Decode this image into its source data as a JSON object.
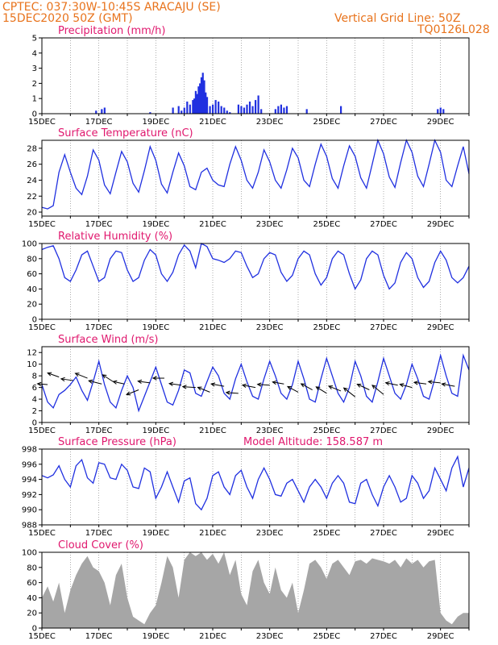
{
  "header": {
    "line1": "CPTEC:   037:30W-10:45S   ARACAJU (SE)",
    "line2": "15DEC2020  50Z (GMT)",
    "right1": "Vertical Grid Line: 50Z",
    "right2": "TQ0126L028"
  },
  "colors": {
    "header": "#e8731c",
    "title": "#e0186e",
    "line": "#2030e0",
    "cloud": "#a6a6a6",
    "arrow": "#000000"
  },
  "x_ticks": [
    "15DEC",
    "17DEC",
    "19DEC",
    "21DEC",
    "23DEC",
    "25DEC",
    "27DEC",
    "29DEC"
  ],
  "chart_data": [
    {
      "id": "precip",
      "type": "bar",
      "title": "Precipitation  (mm/h)",
      "ylim": [
        0,
        5
      ],
      "yticks": [
        0,
        1,
        2,
        3,
        4,
        5
      ],
      "x": [
        16.9,
        17.1,
        17.2,
        18.8,
        19.6,
        19.8,
        19.9,
        20.0,
        20.1,
        20.2,
        20.3,
        20.35,
        20.4,
        20.45,
        20.5,
        20.55,
        20.6,
        20.65,
        20.7,
        20.75,
        20.8,
        20.9,
        21.0,
        21.1,
        21.2,
        21.3,
        21.4,
        21.5,
        21.6,
        21.9,
        22.0,
        22.1,
        22.2,
        22.3,
        22.4,
        22.5,
        22.6,
        22.7,
        23.2,
        23.3,
        23.4,
        23.5,
        23.6,
        24.3,
        25.5,
        28.9,
        29.0,
        29.1
      ],
      "values": [
        0.2,
        0.3,
        0.4,
        0.1,
        0.4,
        0.5,
        0.2,
        0.4,
        0.8,
        0.6,
        0.9,
        1.0,
        1.5,
        1.3,
        1.8,
        2.0,
        2.4,
        2.7,
        2.2,
        1.4,
        1.1,
        0.5,
        0.6,
        0.9,
        0.8,
        0.5,
        0.4,
        0.2,
        0.1,
        0.6,
        0.5,
        0.4,
        0.6,
        0.8,
        0.5,
        0.9,
        1.2,
        0.3,
        0.3,
        0.5,
        0.6,
        0.4,
        0.5,
        0.3,
        0.5,
        0.3,
        0.4,
        0.3
      ]
    },
    {
      "id": "temp",
      "type": "line",
      "title": "Surface Temperature (nC)",
      "ylim": [
        19.5,
        29
      ],
      "yticks": [
        20,
        22,
        24,
        26,
        28
      ],
      "x": [
        15.0,
        15.2,
        15.4,
        15.6,
        15.8,
        16.0,
        16.2,
        16.4,
        16.6,
        16.8,
        17.0,
        17.2,
        17.4,
        17.6,
        17.8,
        18.0,
        18.2,
        18.4,
        18.6,
        18.8,
        19.0,
        19.2,
        19.4,
        19.6,
        19.8,
        20.0,
        20.2,
        20.4,
        20.6,
        20.8,
        21.0,
        21.2,
        21.4,
        21.6,
        21.8,
        22.0,
        22.2,
        22.4,
        22.6,
        22.8,
        23.0,
        23.2,
        23.4,
        23.6,
        23.8,
        24.0,
        24.2,
        24.4,
        24.6,
        24.8,
        25.0,
        25.2,
        25.4,
        25.6,
        25.8,
        26.0,
        26.2,
        26.4,
        26.6,
        26.8,
        27.0,
        27.2,
        27.4,
        27.6,
        27.8,
        28.0,
        28.2,
        28.4,
        28.6,
        28.8,
        29.0,
        29.2,
        29.4,
        29.6,
        29.8,
        30.0
      ],
      "values": [
        20.6,
        20.4,
        20.8,
        25.0,
        27.2,
        25.0,
        23.0,
        22.2,
        24.5,
        27.8,
        26.5,
        23.4,
        22.3,
        25.0,
        27.6,
        26.3,
        23.6,
        22.5,
        25.2,
        28.2,
        26.5,
        23.5,
        22.4,
        25.0,
        27.4,
        25.8,
        23.2,
        22.8,
        25.0,
        25.5,
        24.0,
        23.4,
        23.2,
        26.0,
        28.2,
        26.5,
        24.0,
        23.0,
        25.0,
        27.8,
        26.3,
        24.0,
        23.0,
        25.3,
        28.0,
        26.8,
        24.0,
        23.2,
        26.0,
        28.5,
        27.0,
        24.2,
        23.0,
        25.8,
        28.3,
        27.0,
        24.3,
        23.0,
        26.0,
        29.0,
        27.3,
        24.4,
        23.1,
        26.2,
        29.0,
        27.5,
        24.5,
        23.2,
        26.0,
        29.0,
        27.5,
        24.0,
        23.2,
        25.8,
        28.2,
        24.8
      ]
    },
    {
      "id": "rh",
      "type": "line",
      "title": "Relative Humidity  (%)",
      "ylim": [
        0,
        100
      ],
      "yticks": [
        0,
        20,
        40,
        60,
        80,
        100
      ],
      "x": [
        15.0,
        15.2,
        15.4,
        15.6,
        15.8,
        16.0,
        16.2,
        16.4,
        16.6,
        16.8,
        17.0,
        17.2,
        17.4,
        17.6,
        17.8,
        18.0,
        18.2,
        18.4,
        18.6,
        18.8,
        19.0,
        19.2,
        19.4,
        19.6,
        19.8,
        20.0,
        20.2,
        20.4,
        20.6,
        20.8,
        21.0,
        21.2,
        21.4,
        21.6,
        21.8,
        22.0,
        22.2,
        22.4,
        22.6,
        22.8,
        23.0,
        23.2,
        23.4,
        23.6,
        23.8,
        24.0,
        24.2,
        24.4,
        24.6,
        24.8,
        25.0,
        25.2,
        25.4,
        25.6,
        25.8,
        26.0,
        26.2,
        26.4,
        26.6,
        26.8,
        27.0,
        27.2,
        27.4,
        27.6,
        27.8,
        28.0,
        28.2,
        28.4,
        28.6,
        28.8,
        29.0,
        29.2,
        29.4,
        29.6,
        29.8,
        30.0
      ],
      "values": [
        92,
        95,
        97,
        80,
        55,
        50,
        65,
        85,
        90,
        70,
        50,
        55,
        80,
        90,
        88,
        65,
        50,
        55,
        78,
        92,
        85,
        60,
        50,
        62,
        85,
        98,
        90,
        68,
        100,
        96,
        80,
        78,
        75,
        80,
        90,
        88,
        70,
        55,
        60,
        80,
        88,
        85,
        62,
        50,
        58,
        80,
        90,
        85,
        60,
        45,
        55,
        80,
        90,
        85,
        60,
        40,
        52,
        80,
        90,
        85,
        58,
        40,
        48,
        75,
        88,
        80,
        55,
        42,
        50,
        75,
        90,
        78,
        55,
        48,
        55,
        70
      ]
    },
    {
      "id": "wind",
      "type": "line",
      "title": "Surface Wind  (m/s)",
      "ylim": [
        0,
        13
      ],
      "yticks": [
        0,
        2,
        4,
        6,
        8,
        10,
        12
      ],
      "x": [
        15.0,
        15.2,
        15.4,
        15.6,
        15.8,
        16.0,
        16.2,
        16.4,
        16.6,
        16.8,
        17.0,
        17.2,
        17.4,
        17.6,
        17.8,
        18.0,
        18.2,
        18.4,
        18.6,
        18.8,
        19.0,
        19.2,
        19.4,
        19.6,
        19.8,
        20.0,
        20.2,
        20.4,
        20.6,
        20.8,
        21.0,
        21.2,
        21.4,
        21.6,
        21.8,
        22.0,
        22.2,
        22.4,
        22.6,
        22.8,
        23.0,
        23.2,
        23.4,
        23.6,
        23.8,
        24.0,
        24.2,
        24.4,
        24.6,
        24.8,
        25.0,
        25.2,
        25.4,
        25.6,
        25.8,
        26.0,
        26.2,
        26.4,
        26.6,
        26.8,
        27.0,
        27.2,
        27.4,
        27.6,
        27.8,
        28.0,
        28.2,
        28.4,
        28.6,
        28.8,
        29.0,
        29.2,
        29.4,
        29.6,
        29.8,
        30.0
      ],
      "values": [
        6.5,
        3.5,
        2.5,
        4.8,
        5.5,
        6.5,
        7.8,
        5.5,
        3.8,
        7.0,
        10.5,
        6.5,
        3.5,
        2.5,
        5.5,
        8.0,
        6.0,
        2.0,
        4.5,
        7.0,
        9.5,
        6.5,
        3.5,
        3.0,
        5.5,
        9.0,
        8.5,
        5.0,
        4.5,
        7.0,
        9.5,
        8.0,
        5.0,
        4.0,
        7.5,
        10.0,
        7.0,
        4.5,
        4.0,
        7.5,
        10.5,
        8.0,
        5.0,
        4.0,
        6.5,
        10.5,
        7.5,
        4.0,
        3.5,
        7.5,
        11.0,
        8.0,
        5.0,
        3.5,
        6.0,
        10.5,
        8.0,
        4.5,
        3.5,
        7.0,
        11.0,
        8.0,
        5.0,
        4.0,
        6.5,
        10.0,
        7.5,
        4.5,
        4.0,
        7.5,
        11.5,
        8.0,
        5.0,
        4.5,
        11.5,
        9.0
      ],
      "arrows": [
        {
          "x": 15.2,
          "y": 6.5,
          "u": -2.5,
          "v": 0.2
        },
        {
          "x": 15.6,
          "y": 7.8,
          "u": -2.8,
          "v": 1.0
        },
        {
          "x": 16.1,
          "y": 7.2,
          "u": -3.0,
          "v": 0.4
        },
        {
          "x": 16.6,
          "y": 7.6,
          "u": -3.0,
          "v": 1.2
        },
        {
          "x": 17.1,
          "y": 6.6,
          "u": -3.2,
          "v": 0.8
        },
        {
          "x": 17.5,
          "y": 7.0,
          "u": -2.6,
          "v": 1.7
        },
        {
          "x": 17.9,
          "y": 6.6,
          "u": -2.8,
          "v": 0.6
        },
        {
          "x": 18.4,
          "y": 5.6,
          "u": -3.0,
          "v": -1.2
        },
        {
          "x": 18.8,
          "y": 6.8,
          "u": -3.0,
          "v": 0.4
        },
        {
          "x": 19.3,
          "y": 7.6,
          "u": -2.8,
          "v": 0.0
        },
        {
          "x": 19.9,
          "y": 6.4,
          "u": -3.0,
          "v": 0.4
        },
        {
          "x": 20.4,
          "y": 6.0,
          "u": -3.2,
          "v": 0.2
        },
        {
          "x": 20.9,
          "y": 5.2,
          "u": -3.0,
          "v": 1.2
        },
        {
          "x": 21.4,
          "y": 6.2,
          "u": -3.2,
          "v": 0.6
        },
        {
          "x": 21.9,
          "y": 5.0,
          "u": -3.0,
          "v": 0.2
        },
        {
          "x": 22.5,
          "y": 6.0,
          "u": -3.2,
          "v": 0.6
        },
        {
          "x": 23.0,
          "y": 6.4,
          "u": -3.0,
          "v": 0.2
        },
        {
          "x": 23.5,
          "y": 6.6,
          "u": -2.8,
          "v": 0.5
        },
        {
          "x": 24.0,
          "y": 5.2,
          "u": -2.6,
          "v": 1.4
        },
        {
          "x": 24.5,
          "y": 5.6,
          "u": -2.8,
          "v": 1.5
        },
        {
          "x": 25.0,
          "y": 5.0,
          "u": -2.6,
          "v": 1.6
        },
        {
          "x": 25.5,
          "y": 5.4,
          "u": -3.0,
          "v": 1.2
        },
        {
          "x": 26.0,
          "y": 4.4,
          "u": -2.8,
          "v": 2.2
        },
        {
          "x": 26.5,
          "y": 5.6,
          "u": -3.0,
          "v": 1.4
        },
        {
          "x": 27.0,
          "y": 4.8,
          "u": -2.8,
          "v": 2.3
        },
        {
          "x": 27.5,
          "y": 6.4,
          "u": -3.0,
          "v": 0.6
        },
        {
          "x": 28.0,
          "y": 6.0,
          "u": -3.0,
          "v": 0.8
        },
        {
          "x": 28.5,
          "y": 6.6,
          "u": -3.0,
          "v": 0.4
        },
        {
          "x": 29.0,
          "y": 6.8,
          "u": -3.0,
          "v": 0.3
        },
        {
          "x": 29.5,
          "y": 6.2,
          "u": -3.2,
          "v": 0.6
        }
      ]
    },
    {
      "id": "pres",
      "type": "line",
      "title": "Surface Pressure (hPa)",
      "annotation": "Model Altitude: 158.587  m",
      "ylim": [
        988,
        998
      ],
      "yticks": [
        988,
        990,
        992,
        994,
        996,
        998
      ],
      "x": [
        15.0,
        15.2,
        15.4,
        15.6,
        15.8,
        16.0,
        16.2,
        16.4,
        16.6,
        16.8,
        17.0,
        17.2,
        17.4,
        17.6,
        17.8,
        18.0,
        18.2,
        18.4,
        18.6,
        18.8,
        19.0,
        19.2,
        19.4,
        19.6,
        19.8,
        20.0,
        20.2,
        20.4,
        20.6,
        20.8,
        21.0,
        21.2,
        21.4,
        21.6,
        21.8,
        22.0,
        22.2,
        22.4,
        22.6,
        22.8,
        23.0,
        23.2,
        23.4,
        23.6,
        23.8,
        24.0,
        24.2,
        24.4,
        24.6,
        24.8,
        25.0,
        25.2,
        25.4,
        25.6,
        25.8,
        26.0,
        26.2,
        26.4,
        26.6,
        26.8,
        27.0,
        27.2,
        27.4,
        27.6,
        27.8,
        28.0,
        28.2,
        28.4,
        28.6,
        28.8,
        29.0,
        29.2,
        29.4,
        29.6,
        29.8,
        30.0
      ],
      "values": [
        994.5,
        994.2,
        994.6,
        995.8,
        994.0,
        993.0,
        995.8,
        996.6,
        994.2,
        993.5,
        996.2,
        996.0,
        994.2,
        994.0,
        996.0,
        995.2,
        993.0,
        992.8,
        995.5,
        995.0,
        991.5,
        993.0,
        995.0,
        993.0,
        991.0,
        993.8,
        994.2,
        990.8,
        990.0,
        991.5,
        994.5,
        995.0,
        993.0,
        992.0,
        994.5,
        995.2,
        993.0,
        991.5,
        994.0,
        995.5,
        994.0,
        992.0,
        991.8,
        993.5,
        994.0,
        992.5,
        991.0,
        993.0,
        994.0,
        993.0,
        991.5,
        993.5,
        994.5,
        993.5,
        991.0,
        990.8,
        993.5,
        994.0,
        992.0,
        990.5,
        993.0,
        994.5,
        993.0,
        991.0,
        991.5,
        994.5,
        993.5,
        991.5,
        992.5,
        995.5,
        994.0,
        992.5,
        995.5,
        997.0,
        993.0,
        995.5
      ]
    },
    {
      "id": "cloud",
      "type": "area",
      "title": "Cloud Cover  (%)",
      "ylim": [
        0,
        100
      ],
      "yticks": [
        0,
        20,
        40,
        60,
        80,
        100
      ],
      "x": [
        15.0,
        15.2,
        15.4,
        15.6,
        15.8,
        16.0,
        16.2,
        16.4,
        16.6,
        16.8,
        17.0,
        17.2,
        17.4,
        17.6,
        17.8,
        18.0,
        18.2,
        18.4,
        18.6,
        18.8,
        19.0,
        19.2,
        19.4,
        19.6,
        19.8,
        20.0,
        20.2,
        20.4,
        20.6,
        20.8,
        21.0,
        21.2,
        21.4,
        21.6,
        21.8,
        22.0,
        22.2,
        22.4,
        22.6,
        22.8,
        23.0,
        23.2,
        23.4,
        23.6,
        23.8,
        24.0,
        24.2,
        24.4,
        24.6,
        24.8,
        25.0,
        25.2,
        25.4,
        25.6,
        25.8,
        26.0,
        26.2,
        26.4,
        26.6,
        26.8,
        27.0,
        27.2,
        27.4,
        27.6,
        27.8,
        28.0,
        28.2,
        28.4,
        28.6,
        28.8,
        29.0,
        29.2,
        29.4,
        29.6,
        29.8,
        30.0
      ],
      "values": [
        40,
        55,
        35,
        60,
        20,
        50,
        70,
        85,
        95,
        80,
        75,
        60,
        30,
        70,
        85,
        40,
        15,
        10,
        5,
        20,
        30,
        60,
        95,
        80,
        40,
        90,
        100,
        95,
        100,
        90,
        98,
        85,
        100,
        70,
        90,
        45,
        30,
        75,
        90,
        60,
        45,
        80,
        50,
        40,
        60,
        20,
        50,
        85,
        90,
        80,
        65,
        85,
        90,
        80,
        70,
        88,
        90,
        85,
        92,
        90,
        88,
        85,
        90,
        80,
        92,
        85,
        90,
        80,
        88,
        90,
        20,
        10,
        5,
        15,
        20,
        20
      ]
    }
  ]
}
